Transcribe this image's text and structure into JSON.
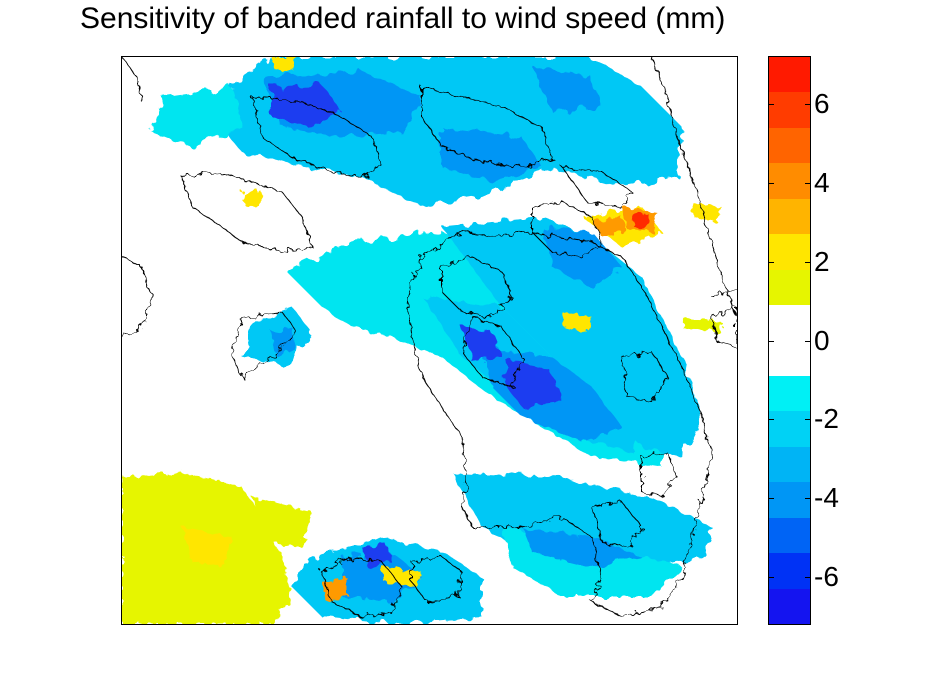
{
  "title": "Sensitivity of banded rainfall to wind speed (mm)",
  "colorbar": {
    "min": -7.2,
    "max": 7.2,
    "bands": [
      {
        "lo": 6.3,
        "hi": 7.2,
        "color": "#ff1a00"
      },
      {
        "lo": 5.4,
        "hi": 6.3,
        "color": "#ff3c00"
      },
      {
        "lo": 4.5,
        "hi": 5.4,
        "color": "#ff6400"
      },
      {
        "lo": 3.6,
        "hi": 4.5,
        "color": "#ff8c00"
      },
      {
        "lo": 2.7,
        "hi": 3.6,
        "color": "#ffb400"
      },
      {
        "lo": 1.8,
        "hi": 2.7,
        "color": "#ffe600"
      },
      {
        "lo": 0.9,
        "hi": 1.8,
        "color": "#e6f500"
      },
      {
        "lo": -0.9,
        "hi": 0.9,
        "color": "#ffffff"
      },
      {
        "lo": -1.8,
        "hi": -0.9,
        "color": "#00f0f5"
      },
      {
        "lo": -2.7,
        "hi": -1.8,
        "color": "#00d2f5"
      },
      {
        "lo": -3.6,
        "hi": -2.7,
        "color": "#00b4f5"
      },
      {
        "lo": -4.5,
        "hi": -3.6,
        "color": "#0096f5"
      },
      {
        "lo": -5.4,
        "hi": -4.5,
        "color": "#0064f5"
      },
      {
        "lo": -6.3,
        "hi": -5.4,
        "color": "#0032f5"
      },
      {
        "lo": -7.2,
        "hi": -6.3,
        "color": "#1414f0"
      }
    ],
    "ticks": [
      {
        "value": 6,
        "label": "6"
      },
      {
        "value": 4,
        "label": "4"
      },
      {
        "value": 2,
        "label": "2"
      },
      {
        "value": 0,
        "label": "0"
      },
      {
        "value": -2,
        "label": "-2"
      },
      {
        "value": -4,
        "label": "-4"
      },
      {
        "value": -6,
        "label": "-6"
      }
    ]
  },
  "map": {
    "contour_color": "#000000",
    "field_colors": {
      "cyan": "#00e5f0",
      "light_blue": "#00c8f5",
      "mid_blue": "#0096f5",
      "deep_blue": "#1e3cf0",
      "yellow_green": "#e6f500",
      "yellow": "#ffe600",
      "orange": "#ff9a00",
      "red": "#ff2a00"
    }
  }
}
